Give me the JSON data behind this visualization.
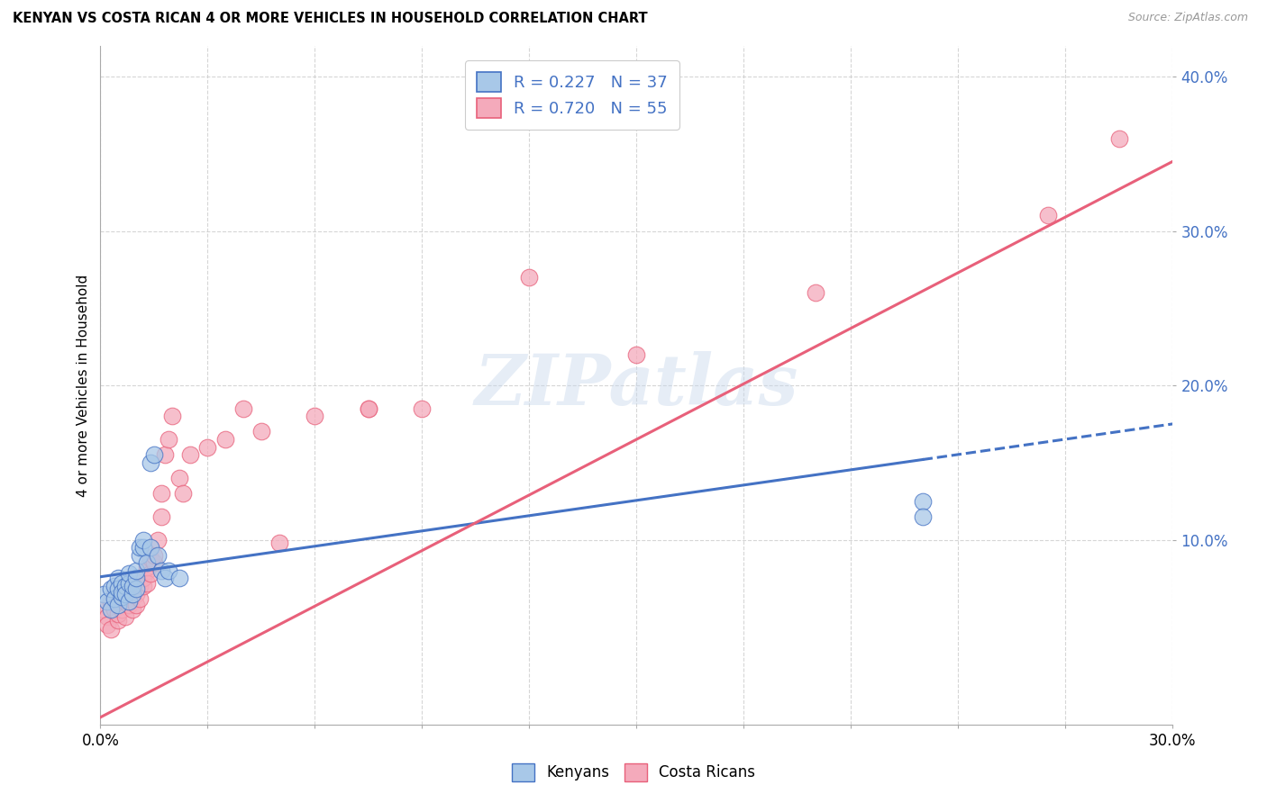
{
  "title": "KENYAN VS COSTA RICAN 4 OR MORE VEHICLES IN HOUSEHOLD CORRELATION CHART",
  "source": "Source: ZipAtlas.com",
  "ylabel": "4 or more Vehicles in Household",
  "xlim": [
    0.0,
    0.3
  ],
  "ylim": [
    -0.02,
    0.42
  ],
  "ytick_vals": [
    0.1,
    0.2,
    0.3,
    0.4
  ],
  "ytick_labels": [
    "10.0%",
    "20.0%",
    "30.0%",
    "40.0%"
  ],
  "xtick_vals": [
    0.0,
    0.03,
    0.06,
    0.09,
    0.12,
    0.15,
    0.18,
    0.21,
    0.24,
    0.27,
    0.3
  ],
  "xtick_first": "0.0%",
  "xtick_last": "30.0%",
  "legend_kenyan_R": "0.227",
  "legend_kenyan_N": "37",
  "legend_costarican_R": "0.720",
  "legend_costarican_N": "55",
  "kenyan_color": "#A8C8E8",
  "costarican_color": "#F4AABB",
  "kenyan_line_color": "#4472C4",
  "costarican_line_color": "#E8607A",
  "watermark": "ZIPatlas",
  "kenyan_scatter_x": [
    0.001,
    0.002,
    0.003,
    0.003,
    0.004,
    0.004,
    0.005,
    0.005,
    0.005,
    0.006,
    0.006,
    0.006,
    0.007,
    0.007,
    0.008,
    0.008,
    0.008,
    0.009,
    0.009,
    0.01,
    0.01,
    0.01,
    0.011,
    0.011,
    0.012,
    0.012,
    0.013,
    0.014,
    0.014,
    0.015,
    0.016,
    0.017,
    0.018,
    0.019,
    0.022,
    0.23,
    0.23
  ],
  "kenyan_scatter_y": [
    0.065,
    0.06,
    0.068,
    0.055,
    0.07,
    0.062,
    0.075,
    0.058,
    0.068,
    0.063,
    0.072,
    0.066,
    0.07,
    0.065,
    0.06,
    0.072,
    0.078,
    0.065,
    0.07,
    0.068,
    0.075,
    0.08,
    0.09,
    0.095,
    0.095,
    0.1,
    0.085,
    0.15,
    0.095,
    0.155,
    0.09,
    0.08,
    0.075,
    0.08,
    0.075,
    0.125,
    0.115
  ],
  "costarican_scatter_x": [
    0.001,
    0.002,
    0.002,
    0.003,
    0.003,
    0.004,
    0.004,
    0.005,
    0.005,
    0.005,
    0.006,
    0.006,
    0.007,
    0.007,
    0.007,
    0.008,
    0.008,
    0.009,
    0.009,
    0.01,
    0.01,
    0.011,
    0.011,
    0.012,
    0.012,
    0.013,
    0.013,
    0.013,
    0.014,
    0.014,
    0.015,
    0.015,
    0.016,
    0.017,
    0.017,
    0.018,
    0.019,
    0.02,
    0.022,
    0.023,
    0.025,
    0.03,
    0.035,
    0.04,
    0.045,
    0.05,
    0.06,
    0.075,
    0.075,
    0.09,
    0.12,
    0.15,
    0.2,
    0.265,
    0.285
  ],
  "costarican_scatter_y": [
    0.055,
    0.05,
    0.045,
    0.06,
    0.042,
    0.055,
    0.065,
    0.058,
    0.048,
    0.052,
    0.062,
    0.055,
    0.068,
    0.06,
    0.05,
    0.058,
    0.062,
    0.055,
    0.065,
    0.065,
    0.058,
    0.07,
    0.062,
    0.07,
    0.075,
    0.08,
    0.072,
    0.082,
    0.078,
    0.088,
    0.085,
    0.09,
    0.1,
    0.115,
    0.13,
    0.155,
    0.165,
    0.18,
    0.14,
    0.13,
    0.155,
    0.16,
    0.165,
    0.185,
    0.17,
    0.098,
    0.18,
    0.185,
    0.185,
    0.185,
    0.27,
    0.22,
    0.26,
    0.31,
    0.36
  ],
  "kenyan_line_x0": 0.0,
  "kenyan_line_y0": 0.076,
  "kenyan_line_x1": 0.3,
  "kenyan_line_y1": 0.175,
  "costarican_line_x0": 0.0,
  "costarican_line_y0": -0.015,
  "costarican_line_x1": 0.3,
  "costarican_line_y1": 0.345
}
